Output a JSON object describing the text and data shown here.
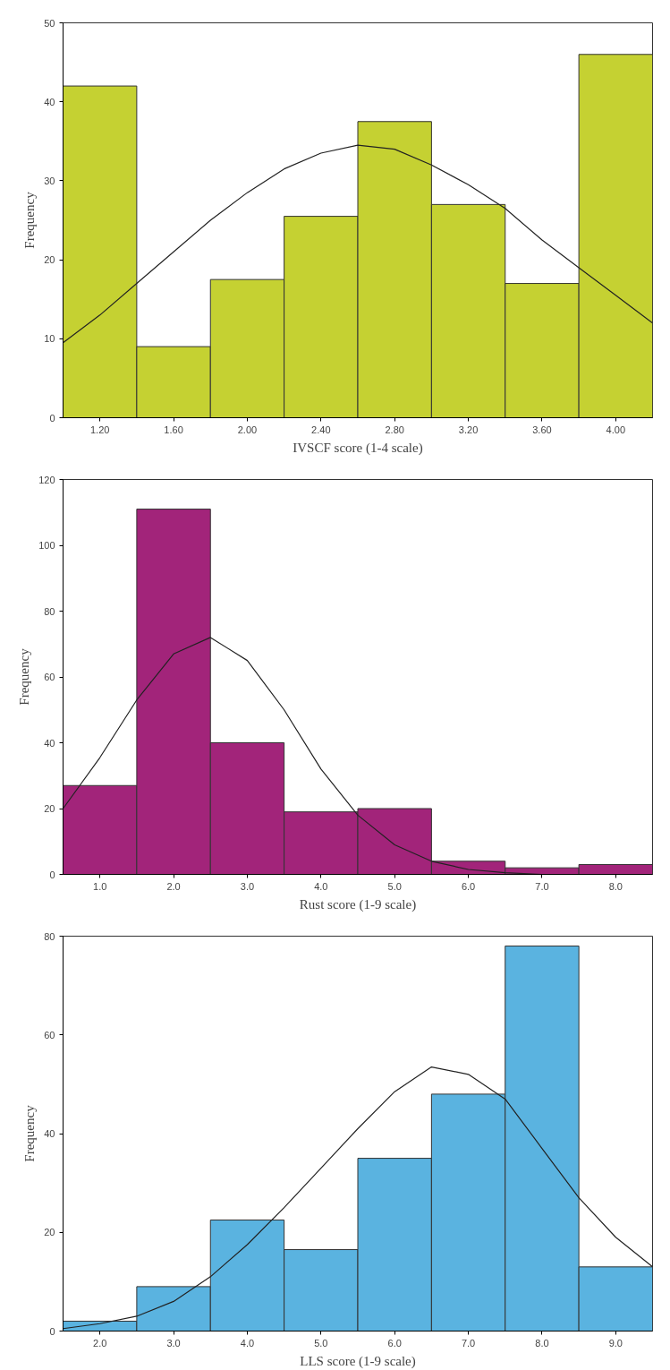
{
  "chart_data": [
    {
      "type": "histogram",
      "xlabel": "IVSCF score (1-4 scale)",
      "ylabel": "Frequency",
      "color": "#c5d132",
      "bins": [
        1.0,
        1.4,
        1.8,
        2.2,
        2.6,
        3.0,
        3.4,
        3.8,
        4.2
      ],
      "values": [
        42,
        9,
        17.5,
        25.5,
        37.5,
        27,
        17,
        46
      ],
      "xlim": [
        1.0,
        4.2
      ],
      "ylim": [
        0,
        50
      ],
      "xticks": [
        {
          "value": 1.2,
          "label": "1.20"
        },
        {
          "value": 1.6,
          "label": "1.60"
        },
        {
          "value": 2.0,
          "label": "2.00"
        },
        {
          "value": 2.4,
          "label": "2.40"
        },
        {
          "value": 2.8,
          "label": "2.80"
        },
        {
          "value": 3.2,
          "label": "3.20"
        },
        {
          "value": 3.6,
          "label": "3.60"
        },
        {
          "value": 4.0,
          "label": "4.00"
        }
      ],
      "yticks": [
        0,
        10,
        20,
        30,
        40,
        50
      ],
      "grid": false,
      "series": [
        {
          "type": "line",
          "color": "#222222",
          "x": [
            1.0,
            1.2,
            1.4,
            1.6,
            1.8,
            2.0,
            2.2,
            2.4,
            2.6,
            2.8,
            3.0,
            3.2,
            3.4,
            3.6,
            3.8,
            4.0,
            4.2
          ],
          "values": [
            9.5,
            13,
            17,
            21,
            25,
            28.5,
            31.5,
            33.5,
            34.5,
            34,
            32,
            29.5,
            26.5,
            22.5,
            19,
            15.5,
            12
          ]
        }
      ]
    },
    {
      "type": "histogram",
      "xlabel": "Rust score (1-9 scale)",
      "ylabel": "Frequency",
      "color": "#a2247a",
      "bins": [
        0.5,
        1.5,
        2.5,
        3.5,
        4.5,
        5.5,
        6.5,
        7.5,
        8.5
      ],
      "values": [
        27,
        111,
        40,
        19,
        20,
        4,
        2,
        3
      ],
      "xlim": [
        0.5,
        8.5
      ],
      "ylim": [
        0,
        120
      ],
      "xticks": [
        {
          "value": 1,
          "label": "1.0"
        },
        {
          "value": 2,
          "label": "2.0"
        },
        {
          "value": 3,
          "label": "3.0"
        },
        {
          "value": 4,
          "label": "4.0"
        },
        {
          "value": 5,
          "label": "5.0"
        },
        {
          "value": 6,
          "label": "6.0"
        },
        {
          "value": 7,
          "label": "7.0"
        },
        {
          "value": 8,
          "label": "8.0"
        }
      ],
      "yticks": [
        0,
        20,
        40,
        60,
        80,
        100,
        120
      ],
      "grid": false,
      "series": [
        {
          "type": "line",
          "color": "#222222",
          "x": [
            0.5,
            1.0,
            1.5,
            2.0,
            2.5,
            3.0,
            3.5,
            4.0,
            4.5,
            5.0,
            5.5,
            6.0,
            6.5,
            7.0,
            7.5,
            8.0,
            8.5
          ],
          "values": [
            20,
            35.5,
            53,
            67,
            72,
            65,
            50,
            32,
            18,
            9,
            4,
            1.5,
            0.5,
            0,
            0,
            0,
            0
          ]
        }
      ]
    },
    {
      "type": "histogram",
      "xlabel": "LLS score (1-9 scale)",
      "ylabel": "Frequency",
      "color": "#5ab3e0",
      "bins": [
        1.5,
        2.5,
        3.5,
        4.5,
        5.5,
        6.5,
        7.5,
        8.5,
        9.5
      ],
      "values": [
        2,
        9,
        22.5,
        16.5,
        35,
        48,
        78,
        13
      ],
      "xlim": [
        1.5,
        9.5
      ],
      "ylim": [
        0,
        80
      ],
      "xticks": [
        {
          "value": 2,
          "label": "2.0"
        },
        {
          "value": 3,
          "label": "3.0"
        },
        {
          "value": 4,
          "label": "4.0"
        },
        {
          "value": 5,
          "label": "5.0"
        },
        {
          "value": 6,
          "label": "6.0"
        },
        {
          "value": 7,
          "label": "7.0"
        },
        {
          "value": 8,
          "label": "8.0"
        },
        {
          "value": 9,
          "label": "9.0"
        }
      ],
      "yticks": [
        0,
        20,
        40,
        60,
        80
      ],
      "grid": false,
      "series": [
        {
          "type": "line",
          "color": "#222222",
          "x": [
            1.5,
            2.0,
            2.5,
            3.0,
            3.5,
            4.0,
            4.5,
            5.0,
            5.5,
            6.0,
            6.5,
            7.0,
            7.5,
            8.0,
            8.5,
            9.0,
            9.5
          ],
          "values": [
            0.5,
            1.5,
            3,
            6,
            11,
            17.5,
            25,
            33,
            41,
            48.5,
            53.5,
            52,
            47,
            37,
            27,
            19,
            13
          ]
        }
      ]
    }
  ]
}
